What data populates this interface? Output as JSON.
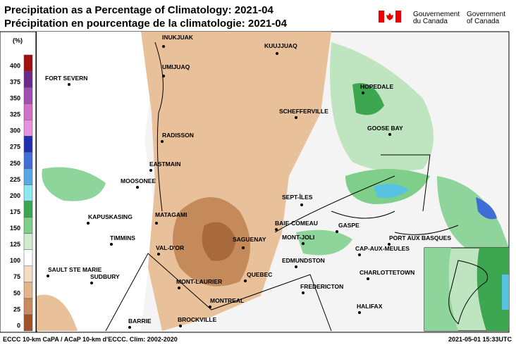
{
  "header": {
    "title": "Precipitation as a Percentage of Climatology: 2021-04",
    "subtitle": "Précipitation en pourcentage de la climatologie: 2021-04",
    "government": [
      "Gouvernement",
      "du Canada",
      "Government",
      "of Canada"
    ]
  },
  "legend": {
    "unit": "(%)",
    "labels": [
      0,
      25,
      50,
      75,
      100,
      125,
      150,
      175,
      200,
      225,
      250,
      275,
      300,
      325,
      350,
      375,
      400
    ]
  },
  "cities": [
    "INUKJUAK",
    "UMIJUAQ",
    "KUUJJUAQ",
    "FORT SEVERN",
    "HOPEDALE",
    "SCHEFFERVILLE",
    "GOOSE BAY",
    "RADISSON",
    "EASTMAIN",
    "MOOSONEE",
    "SEPT-ÎLES",
    "KAPUSKASING",
    "MATAGAMI",
    "BAIE-COMEAU",
    "GASPE",
    "MONT-JOLI",
    "PORT AUX BASQUES",
    "TIMMINS",
    "VAL-D'OR",
    "SAGUENAY",
    "CAP-AUX-MEULES",
    "SAULT STE MARIE",
    "EDMUNDSTON",
    "QUEBEC",
    "CHARLOTTETOWN",
    "SUDBURY",
    "MONT-LAURIER",
    "FREDERICTON",
    "MONTREAL",
    "HALIFAX",
    "BROCKVILLE",
    "BARRIE"
  ],
  "footer": {
    "source": "ECCC 10-km CaPA / ACaP 10-km d'ECCC. Clim: 2002-2020",
    "issued": "2021-05-01 15:33UTC"
  }
}
